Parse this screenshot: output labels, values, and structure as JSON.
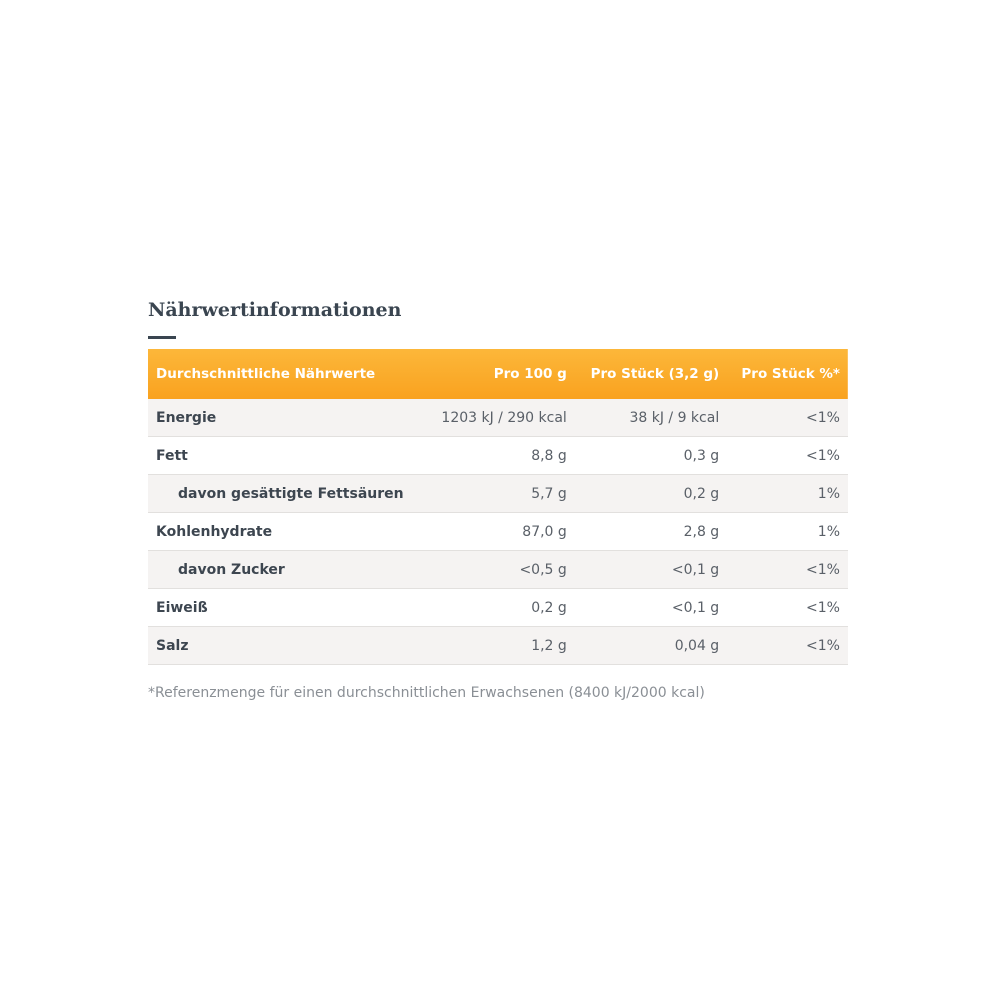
{
  "title": "Nährwertinformationen",
  "table": {
    "header": [
      "Durchschnittliche Nährwerte",
      "Pro 100 g",
      "Pro Stück (3,2 g)",
      "Pro Stück %*"
    ],
    "rows": [
      [
        "Energie",
        "1203 kJ / 290 kcal",
        "38 kJ / 9 kcal",
        "<1%"
      ],
      [
        "Fett",
        "8,8 g",
        "0,3 g",
        "<1%"
      ],
      [
        "davon gesättigte Fettsäuren",
        "5,7 g",
        "0,2 g",
        "1%"
      ],
      [
        "Kohlenhydrate",
        "87,0 g",
        "2,8 g",
        "1%"
      ],
      [
        "davon Zucker",
        "<0,5 g",
        "<0,1 g",
        "<1%"
      ],
      [
        "Eiweiß",
        "0,2 g",
        "<0,1 g",
        "<1%"
      ],
      [
        "Salz",
        "1,2 g",
        "0,04 g",
        "<1%"
      ]
    ],
    "sub_rows": [
      2,
      4
    ]
  },
  "footnote": "*Referenzmenge für einen durchschnittlichen Erwachsenen (8400 kJ/2000 kcal)"
}
